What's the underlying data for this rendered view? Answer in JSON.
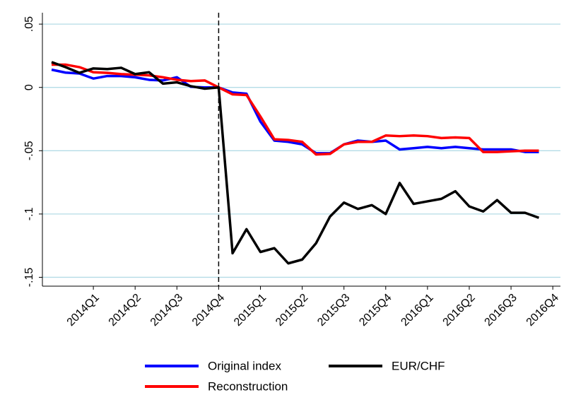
{
  "chart_data": {
    "type": "line",
    "x": [
      0,
      1,
      2,
      3,
      4,
      5,
      6,
      7,
      8,
      9,
      10,
      11,
      12,
      13,
      14,
      15,
      16,
      17,
      18,
      19,
      20,
      21,
      22,
      23,
      24,
      25,
      26,
      27,
      28,
      29,
      30,
      31,
      32,
      33,
      34,
      35
    ],
    "series": [
      {
        "name": "Original index",
        "color": "#0000ff",
        "values": [
          0.014,
          0.0117,
          0.011,
          0.007,
          0.009,
          0.009,
          0.008,
          0.006,
          0.0055,
          0.008,
          0.0005,
          0,
          0,
          -0.004,
          -0.005,
          -0.027,
          -0.042,
          -0.043,
          -0.045,
          -0.052,
          -0.052,
          -0.045,
          -0.042,
          -0.043,
          -0.042,
          -0.049,
          -0.048,
          -0.047,
          -0.048,
          -0.047,
          -0.048,
          -0.049,
          -0.049,
          -0.049,
          -0.051,
          -0.051
        ]
      },
      {
        "name": "Reconstruction",
        "color": "#ff0000",
        "values": [
          0.018,
          0.018,
          0.016,
          0.012,
          0.0115,
          0.0105,
          0.01,
          0.0095,
          0.008,
          0.006,
          0.005,
          0.0055,
          0,
          -0.0055,
          -0.006,
          -0.023,
          -0.041,
          -0.0415,
          -0.043,
          -0.053,
          -0.0525,
          -0.045,
          -0.043,
          -0.043,
          -0.038,
          -0.0385,
          -0.038,
          -0.0385,
          -0.04,
          -0.0395,
          -0.04,
          -0.051,
          -0.051,
          -0.0505,
          -0.05,
          -0.05
        ]
      },
      {
        "name": "EUR/CHF",
        "color": "#000000",
        "values": [
          0.02,
          0.016,
          0.0115,
          0.015,
          0.0145,
          0.0155,
          0.0105,
          0.012,
          0.003,
          0.004,
          0.001,
          -0.001,
          0,
          -0.131,
          -0.112,
          -0.13,
          -0.127,
          -0.139,
          -0.136,
          -0.123,
          -0.102,
          -0.091,
          -0.096,
          -0.093,
          -0.1,
          -0.0755,
          -0.092,
          -0.09,
          -0.088,
          -0.082,
          -0.094,
          -0.098,
          -0.089,
          -0.099,
          -0.099,
          -0.103
        ]
      }
    ],
    "xlim": [
      -0.66,
      36.55
    ],
    "xticks": [
      {
        "value": 3,
        "label": "2014Q1"
      },
      {
        "value": 6,
        "label": "2014Q2"
      },
      {
        "value": 9,
        "label": "2014Q3"
      },
      {
        "value": 12,
        "label": "2014Q4"
      },
      {
        "value": 15,
        "label": "2015Q1"
      },
      {
        "value": 18,
        "label": "2015Q2"
      },
      {
        "value": 21,
        "label": "2015Q3"
      },
      {
        "value": 24,
        "label": "2015Q4"
      },
      {
        "value": 27,
        "label": "2016Q1"
      },
      {
        "value": 30,
        "label": "2016Q2"
      },
      {
        "value": 33,
        "label": "2016Q3"
      },
      {
        "value": 36,
        "label": "2016Q4"
      }
    ],
    "ylim": [
      -0.157,
      0.059
    ],
    "yticks": [
      {
        "value": 0.05,
        "label": ".05"
      },
      0,
      {
        "value": -0.05,
        "label": "-.05"
      },
      {
        "value": -0.1,
        "label": "-.1"
      },
      {
        "value": -0.15,
        "label": "-.15"
      }
    ],
    "grid": true,
    "grid_color": "#b4dce6",
    "vline": 12
  }
}
